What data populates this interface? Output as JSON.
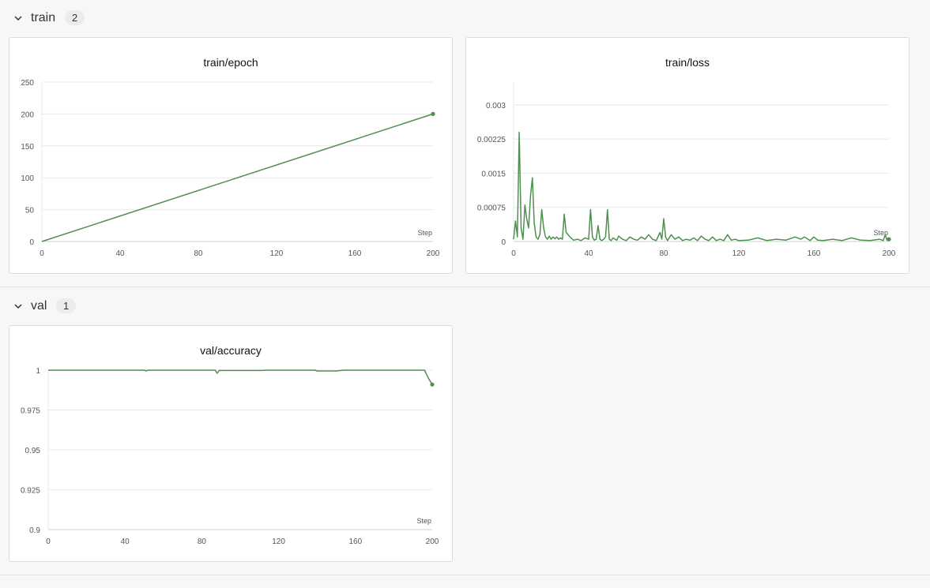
{
  "sections": [
    {
      "title": "train",
      "count": "2"
    },
    {
      "title": "val",
      "count": "1"
    }
  ],
  "colors": {
    "series": "#4f8f4f",
    "grid": "#e8e8e8",
    "axis": "#cfcfcf",
    "tick_text": "#555"
  },
  "icons": {
    "collapse": "chevron-down-icon"
  },
  "chart_data": [
    {
      "type": "line",
      "title": "train/epoch",
      "xlabel": "Step",
      "xlim": [
        0,
        200
      ],
      "ylim": [
        0,
        250
      ],
      "xticks": [
        0,
        40,
        80,
        120,
        160,
        200
      ],
      "yticks": [
        0,
        50,
        100,
        150,
        200,
        250
      ],
      "ytick_labels": [
        "0",
        "50",
        "100",
        "150",
        "200",
        "250"
      ],
      "series": [
        {
          "x": [
            0,
            200
          ],
          "y": [
            0,
            200
          ]
        }
      ],
      "last_point_marker": true
    },
    {
      "type": "line",
      "title": "train/loss",
      "xlabel": "Step",
      "xlim": [
        0,
        200
      ],
      "ylim": [
        0,
        0.0035
      ],
      "xticks": [
        0,
        40,
        80,
        120,
        160,
        200
      ],
      "yticks": [
        0,
        0.00075,
        0.0015,
        0.00225,
        0.003
      ],
      "ytick_labels": [
        "0",
        "0.00075",
        "0.0015",
        "0.00225",
        "0.003"
      ],
      "series": [
        {
          "x": [
            0,
            1,
            2,
            3,
            4,
            5,
            6,
            7,
            8,
            9,
            10,
            11,
            12,
            13,
            14,
            15,
            16,
            17,
            18,
            19,
            20,
            21,
            22,
            23,
            24,
            25,
            26,
            27,
            28,
            29,
            30,
            32,
            34,
            36,
            38,
            40,
            41,
            42,
            43,
            44,
            45,
            46,
            47,
            48,
            49,
            50,
            51,
            52,
            53,
            54,
            55,
            56,
            58,
            60,
            62,
            64,
            66,
            68,
            70,
            72,
            74,
            76,
            78,
            79,
            80,
            81,
            82,
            84,
            86,
            88,
            90,
            92,
            94,
            96,
            98,
            100,
            102,
            104,
            106,
            108,
            110,
            112,
            114,
            116,
            118,
            120,
            125,
            130,
            135,
            140,
            145,
            150,
            153,
            155,
            158,
            160,
            162,
            165,
            170,
            175,
            180,
            185,
            190,
            195,
            197,
            198,
            199,
            200
          ],
          "y": [
            5e-05,
            0.00045,
            0.0001,
            0.0024,
            0.0003,
            5e-05,
            0.0008,
            0.0005,
            0.0003,
            0.001,
            0.0014,
            0.0004,
            0.0001,
            5e-05,
            0.00015,
            0.0007,
            0.0003,
            0.0001,
            5e-05,
            0.00012,
            5e-05,
            0.0001,
            6e-05,
            0.0001,
            5e-05,
            8e-05,
            5e-05,
            0.0006,
            0.0002,
            0.00015,
            0.0001,
            3e-05,
            5e-05,
            2e-05,
            8e-05,
            5e-05,
            0.0007,
            0.0001,
            3e-05,
            5e-05,
            0.00035,
            5e-05,
            2e-05,
            5e-05,
            0.0001,
            0.0007,
            5e-05,
            2e-05,
            8e-05,
            5e-05,
            3e-05,
            0.00012,
            5e-05,
            2e-05,
            0.0001,
            5e-05,
            3e-05,
            0.0001,
            5e-05,
            0.00015,
            5e-05,
            2e-05,
            0.0002,
            5e-05,
            0.0005,
            0.0001,
            2e-05,
            0.00015,
            5e-05,
            0.0001,
            2e-05,
            5e-05,
            3e-05,
            8e-05,
            2e-05,
            0.00012,
            5e-05,
            2e-05,
            0.0001,
            2e-05,
            5e-05,
            2e-05,
            0.00015,
            3e-05,
            5e-05,
            2e-05,
            3e-05,
            8e-05,
            2e-05,
            5e-05,
            3e-05,
            0.0001,
            5e-05,
            0.0001,
            2e-05,
            0.0001,
            3e-05,
            2e-05,
            5e-05,
            2e-05,
            8e-05,
            3e-05,
            2e-05,
            5e-05,
            2e-05,
            0.00015,
            3e-05,
            5e-05
          ]
        }
      ],
      "last_point_marker": true
    },
    {
      "type": "line",
      "title": "val/accuracy",
      "xlabel": "Step",
      "xlim": [
        0,
        200
      ],
      "ylim": [
        0.9,
        1.0
      ],
      "xticks": [
        0,
        40,
        80,
        120,
        160,
        200
      ],
      "yticks": [
        0.9,
        0.925,
        0.95,
        0.975,
        1
      ],
      "ytick_labels": [
        "0.9",
        "0.925",
        "0.95",
        "0.975",
        "1"
      ],
      "series": [
        {
          "x": [
            0,
            50,
            51,
            52,
            87,
            88,
            89,
            112,
            113,
            139,
            140,
            150,
            154,
            196,
            198,
            200
          ],
          "y": [
            1,
            1,
            0.9995,
            1,
            1,
            0.998,
            0.9998,
            0.9998,
            1,
            1,
            0.9995,
            0.9995,
            1,
            1,
            0.995,
            0.991
          ]
        }
      ],
      "last_point_marker": true
    }
  ]
}
